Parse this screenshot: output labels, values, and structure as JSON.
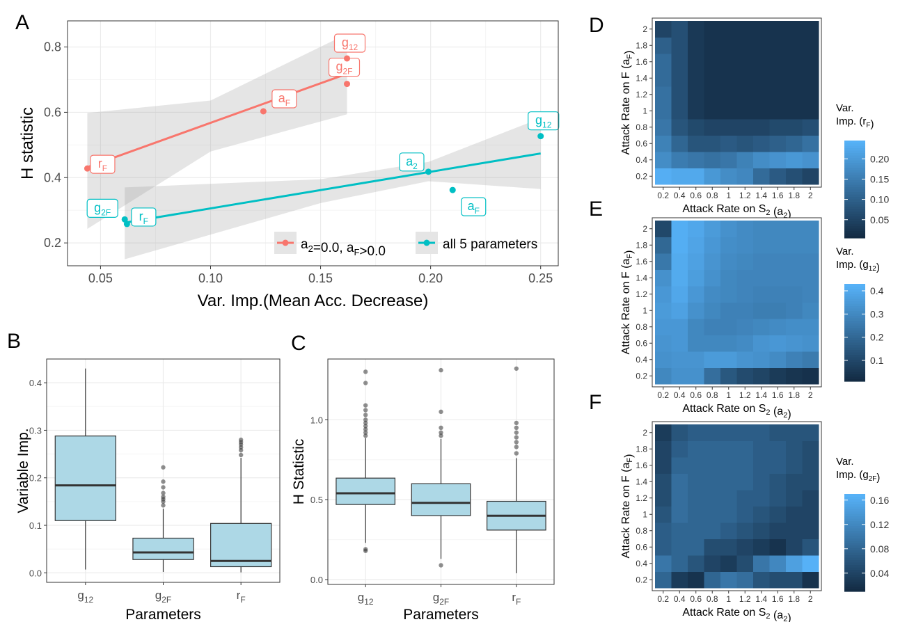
{
  "chart_data": [
    {
      "panel": "A",
      "type": "scatter",
      "xlabel": "Var. Imp.(Mean Acc. Decrease)",
      "ylabel": "H statistic",
      "xlim": [
        0.035,
        0.258
      ],
      "ylim": [
        0.13,
        0.88
      ],
      "xticks": [
        0.05,
        0.1,
        0.15,
        0.2,
        0.25
      ],
      "xtick_labels": [
        "0.05",
        "0.10",
        "0.15",
        "0.20",
        "0.25"
      ],
      "yticks": [
        0.2,
        0.4,
        0.6,
        0.8
      ],
      "ytick_labels": [
        "0.2",
        "0.4",
        "0.6",
        "0.8"
      ],
      "grid": true,
      "legend_position": "bottom-right",
      "series": [
        {
          "name": "a2=0.0, aF>0.0",
          "legend_main": "a",
          "legend_sub": "2",
          "legend_rest1": "=0.0, a",
          "legend_sub2": "F",
          "legend_rest2": ">0.0",
          "color": "#F8766D",
          "points": [
            {
              "x": 0.044,
              "y": 0.428,
              "label_main": "r",
              "label_sub": "F"
            },
            {
              "x": 0.124,
              "y": 0.603,
              "label_main": "a",
              "label_sub": "F"
            },
            {
              "x": 0.162,
              "y": 0.687,
              "label_main": "g",
              "label_sub": "2F"
            },
            {
              "x": 0.162,
              "y": 0.765,
              "label_main": "g",
              "label_sub": "12"
            }
          ],
          "fit": [
            [
              0.044,
              0.432
            ],
            [
              0.162,
              0.718
            ]
          ],
          "band_upper": [
            [
              0.044,
              0.598
            ],
            [
              0.1,
              0.636
            ],
            [
              0.162,
              0.84
            ]
          ],
          "band_lower": [
            [
              0.044,
              0.243
            ],
            [
              0.1,
              0.48
            ],
            [
              0.162,
              0.594
            ]
          ]
        },
        {
          "name": "all 5 parameters",
          "color": "#00BFC4",
          "points": [
            {
              "x": 0.061,
              "y": 0.272,
              "label_main": "g",
              "label_sub": "2F"
            },
            {
              "x": 0.062,
              "y": 0.258,
              "label_main": "r",
              "label_sub": "F"
            },
            {
              "x": 0.199,
              "y": 0.418,
              "label_main": "a",
              "label_sub": "2"
            },
            {
              "x": 0.21,
              "y": 0.362,
              "label_main": "a",
              "label_sub": "F"
            },
            {
              "x": 0.25,
              "y": 0.527,
              "label_main": "g",
              "label_sub": "12"
            }
          ],
          "fit": [
            [
              0.061,
              0.262
            ],
            [
              0.25,
              0.474
            ]
          ],
          "band_upper": [
            [
              0.061,
              0.37
            ],
            [
              0.15,
              0.395
            ],
            [
              0.199,
              0.448
            ],
            [
              0.25,
              0.582
            ]
          ],
          "band_lower": [
            [
              0.061,
              0.15
            ],
            [
              0.15,
              0.322
            ],
            [
              0.199,
              0.389
            ],
            [
              0.25,
              0.365
            ]
          ]
        }
      ]
    },
    {
      "panel": "B",
      "type": "box",
      "xlabel": "Parameters",
      "ylabel": "Variable Imp.",
      "ylim": [
        -0.02,
        0.45
      ],
      "yticks": [
        0.0,
        0.1,
        0.2,
        0.3,
        0.4
      ],
      "ytick_labels": [
        "0.0",
        "0.1",
        "0.2",
        "0.3",
        "0.4"
      ],
      "fill": "#ADD8E6",
      "categories": [
        {
          "main": "g",
          "sub": "12",
          "whisker_low": 0.007,
          "q1": 0.11,
          "median": 0.184,
          "q3": 0.288,
          "whisker_high": 0.43,
          "outliers": []
        },
        {
          "main": "g",
          "sub": "2F",
          "whisker_low": 0.002,
          "q1": 0.028,
          "median": 0.043,
          "q3": 0.073,
          "whisker_high": 0.135,
          "outliers": [
            0.142,
            0.15,
            0.155,
            0.16,
            0.168,
            0.18,
            0.192,
            0.222
          ]
        },
        {
          "main": "r",
          "sub": "F",
          "whisker_low": 0.001,
          "q1": 0.013,
          "median": 0.025,
          "q3": 0.104,
          "whisker_high": 0.242,
          "outliers": [
            0.248,
            0.258,
            0.264,
            0.27,
            0.275,
            0.28
          ]
        }
      ]
    },
    {
      "panel": "C",
      "type": "box",
      "xlabel": "Parameters",
      "ylabel": "H Statistic",
      "ylim": [
        -0.03,
        1.38
      ],
      "yticks": [
        0.0,
        0.5,
        1.0
      ],
      "ytick_labels": [
        "0.0",
        "0.5",
        "1.0"
      ],
      "fill": "#ADD8E6",
      "categories": [
        {
          "main": "g",
          "sub": "12",
          "whisker_low": 0.23,
          "q1": 0.47,
          "median": 0.54,
          "q3": 0.635,
          "whisker_high": 0.885,
          "outliers": [
            0.18,
            0.19,
            0.9,
            0.92,
            0.94,
            0.96,
            0.98,
            1.0,
            1.03,
            1.06,
            1.09,
            1.23,
            1.3
          ]
        },
        {
          "main": "g",
          "sub": "2F",
          "whisker_low": 0.13,
          "q1": 0.4,
          "median": 0.48,
          "q3": 0.6,
          "whisker_high": 0.88,
          "outliers": [
            0.09,
            0.9,
            0.92,
            0.95,
            1.05,
            1.31
          ]
        },
        {
          "main": "r",
          "sub": "F",
          "whisker_low": 0.04,
          "q1": 0.31,
          "median": 0.4,
          "q3": 0.49,
          "whisker_high": 0.76,
          "outliers": [
            0.79,
            0.83,
            0.86,
            0.89,
            0.92,
            0.95,
            0.98,
            1.32
          ]
        }
      ]
    },
    {
      "panel": "D",
      "type": "heatmap",
      "xlabel_main": "Attack Rate on  S",
      "xlabel_sub": "2",
      "xlabel_paren_main": "a",
      "xlabel_paren_sub": "2",
      "ylabel_main": "Attack Rate on F  ",
      "ylabel_paren_main": "a",
      "ylabel_paren_sub": "F",
      "x": [
        "0.2",
        "0.4",
        "0.6",
        "0.8",
        "1",
        "1.2",
        "1.4",
        "1.6",
        "1.8",
        "2"
      ],
      "y": [
        "0.2",
        "0.4",
        "0.6",
        "0.8",
        "1",
        "1.2",
        "1.4",
        "1.6",
        "1.8",
        "2"
      ],
      "colorbar_title": "Var.",
      "colorbar_title2_main": "Imp. (r",
      "colorbar_title2_sub": "F",
      "colorbar_title2_end": ")",
      "colorbar_ticks": [
        0.05,
        0.1,
        0.15,
        0.2
      ],
      "colorbar_tick_labels": [
        "0.05",
        "0.10",
        "0.15",
        "0.20"
      ],
      "zlim": [
        0.005,
        0.245
      ],
      "low_color": "#132B43",
      "high_color": "#56B1F7",
      "z": [
        [
          0.24,
          0.23,
          0.23,
          0.2,
          0.18,
          0.17,
          0.12,
          0.09,
          0.07,
          0.05
        ],
        [
          0.18,
          0.15,
          0.14,
          0.13,
          0.14,
          0.16,
          0.18,
          0.19,
          0.2,
          0.19
        ],
        [
          0.16,
          0.11,
          0.08,
          0.08,
          0.09,
          0.08,
          0.09,
          0.1,
          0.11,
          0.13
        ],
        [
          0.14,
          0.08,
          0.06,
          0.05,
          0.05,
          0.05,
          0.05,
          0.06,
          0.06,
          0.07
        ],
        [
          0.13,
          0.07,
          0.03,
          0.02,
          0.02,
          0.02,
          0.02,
          0.02,
          0.02,
          0.02
        ],
        [
          0.13,
          0.07,
          0.03,
          0.02,
          0.02,
          0.02,
          0.02,
          0.02,
          0.02,
          0.02
        ],
        [
          0.12,
          0.07,
          0.03,
          0.02,
          0.02,
          0.02,
          0.02,
          0.02,
          0.02,
          0.02
        ],
        [
          0.12,
          0.07,
          0.03,
          0.02,
          0.02,
          0.02,
          0.02,
          0.02,
          0.02,
          0.02
        ],
        [
          0.1,
          0.07,
          0.03,
          0.02,
          0.02,
          0.02,
          0.02,
          0.02,
          0.02,
          0.02
        ],
        [
          0.05,
          0.07,
          0.03,
          0.02,
          0.02,
          0.02,
          0.02,
          0.02,
          0.02,
          0.02
        ]
      ]
    },
    {
      "panel": "E",
      "type": "heatmap",
      "xlabel_main": "Attack Rate on  S",
      "xlabel_sub": "2",
      "xlabel_paren_main": "a",
      "xlabel_paren_sub": "2",
      "ylabel_main": "Attack Rate on F  ",
      "ylabel_paren_main": "a",
      "ylabel_paren_sub": "F",
      "x": [
        "0.2",
        "0.4",
        "0.6",
        "0.8",
        "1",
        "1.2",
        "1.4",
        "1.6",
        "1.8",
        "2"
      ],
      "y": [
        "0.2",
        "0.4",
        "0.6",
        "0.8",
        "1",
        "1.2",
        "1.4",
        "1.6",
        "1.8",
        "2"
      ],
      "colorbar_title": "Var.",
      "colorbar_title2_main": "Imp. (g",
      "colorbar_title2_sub": "12",
      "colorbar_title2_end": ")",
      "colorbar_ticks": [
        0.1,
        0.2,
        0.3,
        0.4
      ],
      "colorbar_tick_labels": [
        "0.1",
        "0.2",
        "0.3",
        "0.4"
      ],
      "zlim": [
        0.01,
        0.43
      ],
      "low_color": "#132B43",
      "high_color": "#56B1F7",
      "z": [
        [
          0.3,
          0.33,
          0.33,
          0.22,
          0.15,
          0.11,
          0.09,
          0.06,
          0.04,
          0.03
        ],
        [
          0.33,
          0.34,
          0.34,
          0.36,
          0.36,
          0.34,
          0.33,
          0.31,
          0.28,
          0.26
        ],
        [
          0.34,
          0.35,
          0.3,
          0.3,
          0.3,
          0.31,
          0.34,
          0.35,
          0.34,
          0.33
        ],
        [
          0.35,
          0.35,
          0.3,
          0.28,
          0.28,
          0.29,
          0.3,
          0.31,
          0.32,
          0.32
        ],
        [
          0.36,
          0.38,
          0.33,
          0.3,
          0.28,
          0.28,
          0.27,
          0.27,
          0.28,
          0.3
        ],
        [
          0.35,
          0.4,
          0.35,
          0.31,
          0.3,
          0.29,
          0.28,
          0.28,
          0.28,
          0.29
        ],
        [
          0.33,
          0.41,
          0.37,
          0.33,
          0.3,
          0.29,
          0.29,
          0.29,
          0.29,
          0.29
        ],
        [
          0.25,
          0.41,
          0.38,
          0.34,
          0.31,
          0.3,
          0.29,
          0.29,
          0.29,
          0.29
        ],
        [
          0.2,
          0.42,
          0.39,
          0.35,
          0.32,
          0.31,
          0.3,
          0.3,
          0.3,
          0.3
        ],
        [
          0.1,
          0.42,
          0.4,
          0.36,
          0.33,
          0.31,
          0.3,
          0.3,
          0.3,
          0.3
        ]
      ]
    },
    {
      "panel": "F",
      "type": "heatmap",
      "xlabel_main": "Attack Rate on  S",
      "xlabel_sub": "2",
      "xlabel_paren_main": "a",
      "xlabel_paren_sub": "2",
      "ylabel_main": "Attack Rate on F  ",
      "ylabel_paren_main": "a",
      "ylabel_paren_sub": "F",
      "x": [
        "0.2",
        "0.4",
        "0.6",
        "0.8",
        "1",
        "1.2",
        "1.4",
        "1.6",
        "1.8",
        "2"
      ],
      "y": [
        "0.2",
        "0.4",
        "0.6",
        "0.8",
        "1",
        "1.2",
        "1.4",
        "1.6",
        "1.8",
        "2"
      ],
      "colorbar_title": "Var.",
      "colorbar_title2_main": "Imp. (g",
      "colorbar_title2_sub": "2F",
      "colorbar_title2_end": ")",
      "colorbar_ticks": [
        0.04,
        0.08,
        0.12,
        0.16
      ],
      "colorbar_tick_labels": [
        "0.04",
        "0.08",
        "0.12",
        "0.16"
      ],
      "zlim": [
        0.01,
        0.17
      ],
      "low_color": "#132B43",
      "high_color": "#56B1F7",
      "z": [
        [
          0.08,
          0.03,
          0.02,
          0.08,
          0.1,
          0.09,
          0.06,
          0.05,
          0.05,
          0.02
        ],
        [
          0.1,
          0.08,
          0.06,
          0.04,
          0.03,
          0.05,
          0.1,
          0.12,
          0.15,
          0.17
        ],
        [
          0.07,
          0.08,
          0.08,
          0.05,
          0.05,
          0.04,
          0.03,
          0.02,
          0.04,
          0.06
        ],
        [
          0.07,
          0.08,
          0.08,
          0.08,
          0.07,
          0.06,
          0.05,
          0.04,
          0.04,
          0.04
        ],
        [
          0.06,
          0.09,
          0.08,
          0.08,
          0.08,
          0.07,
          0.06,
          0.05,
          0.04,
          0.04
        ],
        [
          0.05,
          0.09,
          0.08,
          0.08,
          0.08,
          0.07,
          0.07,
          0.06,
          0.05,
          0.04
        ],
        [
          0.05,
          0.09,
          0.08,
          0.08,
          0.08,
          0.08,
          0.07,
          0.06,
          0.05,
          0.05
        ],
        [
          0.04,
          0.08,
          0.08,
          0.08,
          0.08,
          0.08,
          0.07,
          0.07,
          0.06,
          0.05
        ],
        [
          0.04,
          0.07,
          0.08,
          0.08,
          0.08,
          0.08,
          0.07,
          0.07,
          0.06,
          0.05
        ],
        [
          0.03,
          0.06,
          0.07,
          0.07,
          0.07,
          0.07,
          0.07,
          0.06,
          0.06,
          0.06
        ]
      ]
    }
  ]
}
